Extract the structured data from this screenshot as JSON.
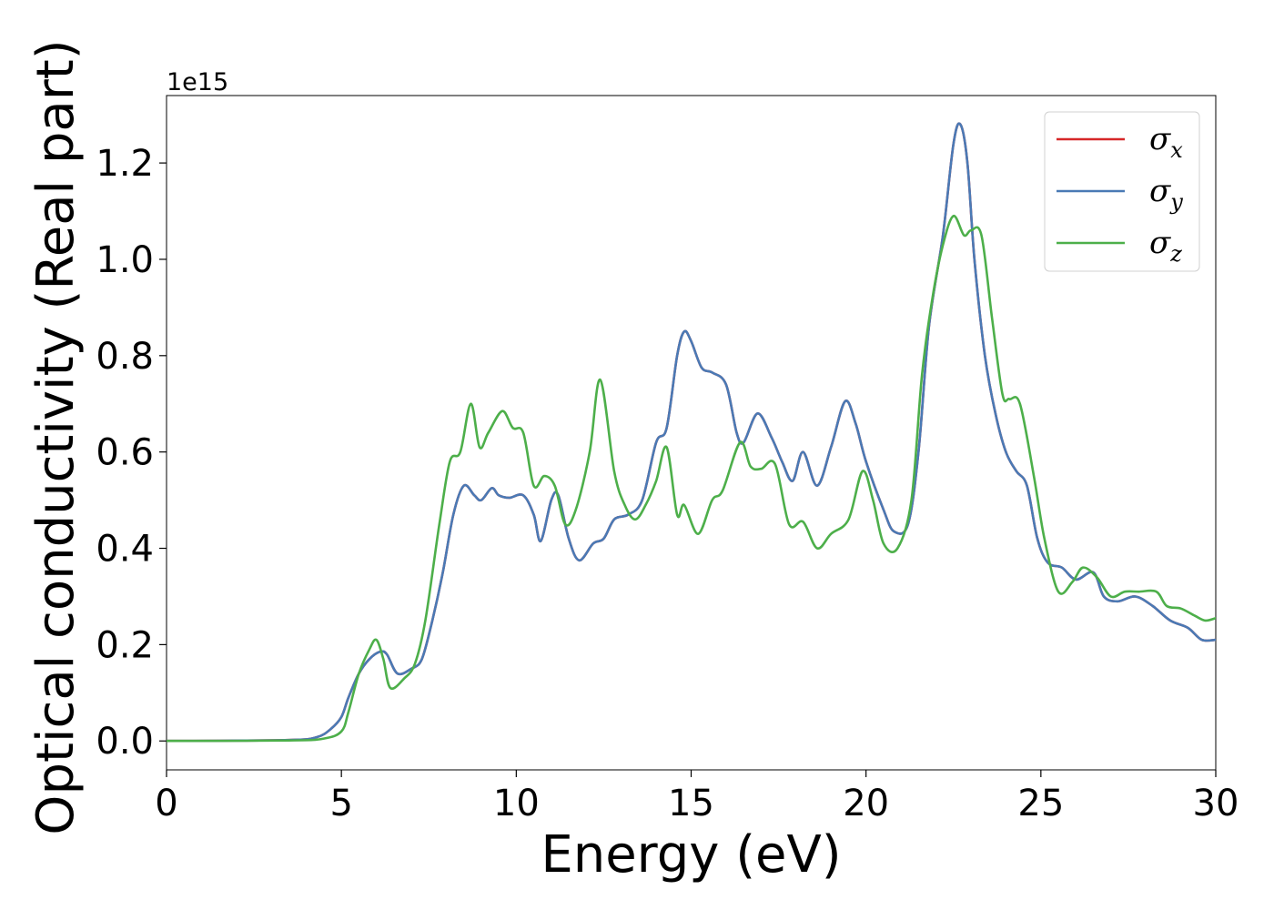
{
  "chart_data": {
    "type": "line",
    "title": "",
    "xlabel": "Energy (eV)",
    "ylabel": "Optical conductivity (Real part)",
    "y_offset_label": "1e15",
    "xlim": [
      0,
      30
    ],
    "ylim": [
      -0.06,
      1.34
    ],
    "x_ticks": [
      0,
      5,
      10,
      15,
      20,
      25,
      30
    ],
    "y_ticks": [
      0.0,
      0.2,
      0.4,
      0.6,
      0.8,
      1.0,
      1.2
    ],
    "y_tick_labels": [
      "0.0",
      "0.2",
      "0.4",
      "0.6",
      "0.8",
      "1.0",
      "1.2"
    ],
    "grid": false,
    "legend_position": "top-right",
    "series": [
      {
        "name": "σx",
        "symbol": "σ",
        "subscript": "x",
        "color": "#d62728",
        "points": [
          [
            0,
            0
          ],
          [
            3.5,
            0.002
          ],
          [
            4.3,
            0.008
          ],
          [
            4.7,
            0.025
          ],
          [
            5.0,
            0.05
          ],
          [
            5.2,
            0.09
          ],
          [
            5.5,
            0.14
          ],
          [
            5.8,
            0.17
          ],
          [
            6.1,
            0.185
          ],
          [
            6.3,
            0.18
          ],
          [
            6.6,
            0.14
          ],
          [
            7.0,
            0.15
          ],
          [
            7.3,
            0.17
          ],
          [
            7.6,
            0.25
          ],
          [
            7.9,
            0.35
          ],
          [
            8.2,
            0.47
          ],
          [
            8.5,
            0.53
          ],
          [
            8.8,
            0.51
          ],
          [
            9.0,
            0.5
          ],
          [
            9.3,
            0.525
          ],
          [
            9.5,
            0.51
          ],
          [
            9.8,
            0.505
          ],
          [
            10.2,
            0.51
          ],
          [
            10.5,
            0.47
          ],
          [
            10.7,
            0.415
          ],
          [
            11.0,
            0.5
          ],
          [
            11.2,
            0.51
          ],
          [
            11.5,
            0.42
          ],
          [
            11.8,
            0.375
          ],
          [
            12.2,
            0.41
          ],
          [
            12.5,
            0.42
          ],
          [
            12.8,
            0.46
          ],
          [
            13.2,
            0.47
          ],
          [
            13.6,
            0.5
          ],
          [
            14.0,
            0.62
          ],
          [
            14.3,
            0.65
          ],
          [
            14.6,
            0.8
          ],
          [
            14.8,
            0.85
          ],
          [
            15.0,
            0.83
          ],
          [
            15.3,
            0.775
          ],
          [
            15.6,
            0.765
          ],
          [
            16.0,
            0.74
          ],
          [
            16.3,
            0.64
          ],
          [
            16.5,
            0.62
          ],
          [
            16.9,
            0.68
          ],
          [
            17.3,
            0.63
          ],
          [
            17.6,
            0.58
          ],
          [
            17.9,
            0.54
          ],
          [
            18.2,
            0.6
          ],
          [
            18.6,
            0.53
          ],
          [
            19.0,
            0.61
          ],
          [
            19.4,
            0.705
          ],
          [
            19.7,
            0.66
          ],
          [
            20.0,
            0.58
          ],
          [
            20.5,
            0.48
          ],
          [
            20.8,
            0.435
          ],
          [
            21.2,
            0.45
          ],
          [
            21.5,
            0.6
          ],
          [
            21.8,
            0.86
          ],
          [
            22.2,
            1.05
          ],
          [
            22.5,
            1.24
          ],
          [
            22.7,
            1.28
          ],
          [
            22.9,
            1.2
          ],
          [
            23.1,
            1.0
          ],
          [
            23.4,
            0.8
          ],
          [
            23.7,
            0.68
          ],
          [
            24.0,
            0.6
          ],
          [
            24.3,
            0.56
          ],
          [
            24.6,
            0.53
          ],
          [
            24.9,
            0.42
          ],
          [
            25.2,
            0.37
          ],
          [
            25.6,
            0.36
          ],
          [
            26.0,
            0.335
          ],
          [
            26.5,
            0.35
          ],
          [
            26.8,
            0.3
          ],
          [
            27.2,
            0.29
          ],
          [
            27.7,
            0.3
          ],
          [
            28.2,
            0.28
          ],
          [
            28.7,
            0.25
          ],
          [
            29.2,
            0.235
          ],
          [
            29.6,
            0.21
          ],
          [
            30.0,
            0.21
          ]
        ]
      },
      {
        "name": "σy",
        "symbol": "σ",
        "subscript": "y",
        "color": "#4a7ab5",
        "points": [
          [
            0,
            0
          ],
          [
            3.5,
            0.002
          ],
          [
            4.3,
            0.008
          ],
          [
            4.7,
            0.025
          ],
          [
            5.0,
            0.05
          ],
          [
            5.2,
            0.09
          ],
          [
            5.5,
            0.14
          ],
          [
            5.8,
            0.17
          ],
          [
            6.1,
            0.185
          ],
          [
            6.3,
            0.18
          ],
          [
            6.6,
            0.14
          ],
          [
            7.0,
            0.15
          ],
          [
            7.3,
            0.17
          ],
          [
            7.6,
            0.25
          ],
          [
            7.9,
            0.35
          ],
          [
            8.2,
            0.47
          ],
          [
            8.5,
            0.53
          ],
          [
            8.8,
            0.51
          ],
          [
            9.0,
            0.5
          ],
          [
            9.3,
            0.525
          ],
          [
            9.5,
            0.51
          ],
          [
            9.8,
            0.505
          ],
          [
            10.2,
            0.51
          ],
          [
            10.5,
            0.47
          ],
          [
            10.7,
            0.415
          ],
          [
            11.0,
            0.5
          ],
          [
            11.2,
            0.51
          ],
          [
            11.5,
            0.42
          ],
          [
            11.8,
            0.375
          ],
          [
            12.2,
            0.41
          ],
          [
            12.5,
            0.42
          ],
          [
            12.8,
            0.46
          ],
          [
            13.2,
            0.47
          ],
          [
            13.6,
            0.5
          ],
          [
            14.0,
            0.62
          ],
          [
            14.3,
            0.65
          ],
          [
            14.6,
            0.8
          ],
          [
            14.8,
            0.85
          ],
          [
            15.0,
            0.83
          ],
          [
            15.3,
            0.775
          ],
          [
            15.6,
            0.765
          ],
          [
            16.0,
            0.74
          ],
          [
            16.3,
            0.64
          ],
          [
            16.5,
            0.62
          ],
          [
            16.9,
            0.68
          ],
          [
            17.3,
            0.63
          ],
          [
            17.6,
            0.58
          ],
          [
            17.9,
            0.54
          ],
          [
            18.2,
            0.6
          ],
          [
            18.6,
            0.53
          ],
          [
            19.0,
            0.61
          ],
          [
            19.4,
            0.705
          ],
          [
            19.7,
            0.66
          ],
          [
            20.0,
            0.58
          ],
          [
            20.5,
            0.48
          ],
          [
            20.8,
            0.435
          ],
          [
            21.2,
            0.45
          ],
          [
            21.5,
            0.6
          ],
          [
            21.8,
            0.86
          ],
          [
            22.2,
            1.05
          ],
          [
            22.5,
            1.24
          ],
          [
            22.7,
            1.28
          ],
          [
            22.9,
            1.2
          ],
          [
            23.1,
            1.0
          ],
          [
            23.4,
            0.8
          ],
          [
            23.7,
            0.68
          ],
          [
            24.0,
            0.6
          ],
          [
            24.3,
            0.56
          ],
          [
            24.6,
            0.53
          ],
          [
            24.9,
            0.42
          ],
          [
            25.2,
            0.37
          ],
          [
            25.6,
            0.36
          ],
          [
            26.0,
            0.335
          ],
          [
            26.5,
            0.35
          ],
          [
            26.8,
            0.3
          ],
          [
            27.2,
            0.29
          ],
          [
            27.7,
            0.3
          ],
          [
            28.2,
            0.28
          ],
          [
            28.7,
            0.25
          ],
          [
            29.2,
            0.235
          ],
          [
            29.6,
            0.21
          ],
          [
            30.0,
            0.21
          ]
        ]
      },
      {
        "name": "σz",
        "symbol": "σ",
        "subscript": "z",
        "color": "#4daf4a",
        "points": [
          [
            0,
            0
          ],
          [
            3.5,
            0.001
          ],
          [
            4.5,
            0.005
          ],
          [
            5.0,
            0.02
          ],
          [
            5.2,
            0.06
          ],
          [
            5.5,
            0.14
          ],
          [
            5.8,
            0.19
          ],
          [
            6.0,
            0.21
          ],
          [
            6.2,
            0.17
          ],
          [
            6.4,
            0.11
          ],
          [
            6.8,
            0.13
          ],
          [
            7.1,
            0.16
          ],
          [
            7.4,
            0.25
          ],
          [
            7.8,
            0.45
          ],
          [
            8.1,
            0.58
          ],
          [
            8.4,
            0.6
          ],
          [
            8.7,
            0.7
          ],
          [
            8.95,
            0.61
          ],
          [
            9.2,
            0.64
          ],
          [
            9.6,
            0.685
          ],
          [
            9.9,
            0.65
          ],
          [
            10.2,
            0.64
          ],
          [
            10.5,
            0.53
          ],
          [
            10.8,
            0.55
          ],
          [
            11.1,
            0.53
          ],
          [
            11.4,
            0.45
          ],
          [
            11.7,
            0.48
          ],
          [
            12.1,
            0.6
          ],
          [
            12.4,
            0.75
          ],
          [
            12.8,
            0.56
          ],
          [
            13.1,
            0.49
          ],
          [
            13.4,
            0.46
          ],
          [
            13.7,
            0.49
          ],
          [
            14.0,
            0.54
          ],
          [
            14.3,
            0.61
          ],
          [
            14.6,
            0.47
          ],
          [
            14.8,
            0.49
          ],
          [
            15.2,
            0.43
          ],
          [
            15.6,
            0.5
          ],
          [
            15.9,
            0.52
          ],
          [
            16.4,
            0.62
          ],
          [
            16.7,
            0.57
          ],
          [
            17.0,
            0.565
          ],
          [
            17.4,
            0.575
          ],
          [
            17.8,
            0.45
          ],
          [
            18.2,
            0.455
          ],
          [
            18.6,
            0.4
          ],
          [
            19.0,
            0.43
          ],
          [
            19.5,
            0.46
          ],
          [
            19.9,
            0.56
          ],
          [
            20.2,
            0.5
          ],
          [
            20.5,
            0.41
          ],
          [
            20.9,
            0.4
          ],
          [
            21.3,
            0.5
          ],
          [
            21.6,
            0.76
          ],
          [
            21.9,
            0.92
          ],
          [
            22.2,
            1.03
          ],
          [
            22.5,
            1.09
          ],
          [
            22.8,
            1.05
          ],
          [
            23.0,
            1.06
          ],
          [
            23.3,
            1.05
          ],
          [
            23.6,
            0.88
          ],
          [
            23.9,
            0.72
          ],
          [
            24.1,
            0.71
          ],
          [
            24.4,
            0.7
          ],
          [
            24.8,
            0.55
          ],
          [
            25.1,
            0.42
          ],
          [
            25.5,
            0.31
          ],
          [
            25.9,
            0.33
          ],
          [
            26.2,
            0.36
          ],
          [
            26.6,
            0.34
          ],
          [
            27.0,
            0.3
          ],
          [
            27.4,
            0.31
          ],
          [
            27.8,
            0.31
          ],
          [
            28.3,
            0.31
          ],
          [
            28.6,
            0.28
          ],
          [
            29.0,
            0.275
          ],
          [
            29.4,
            0.26
          ],
          [
            29.7,
            0.25
          ],
          [
            30.0,
            0.255
          ]
        ]
      }
    ]
  }
}
